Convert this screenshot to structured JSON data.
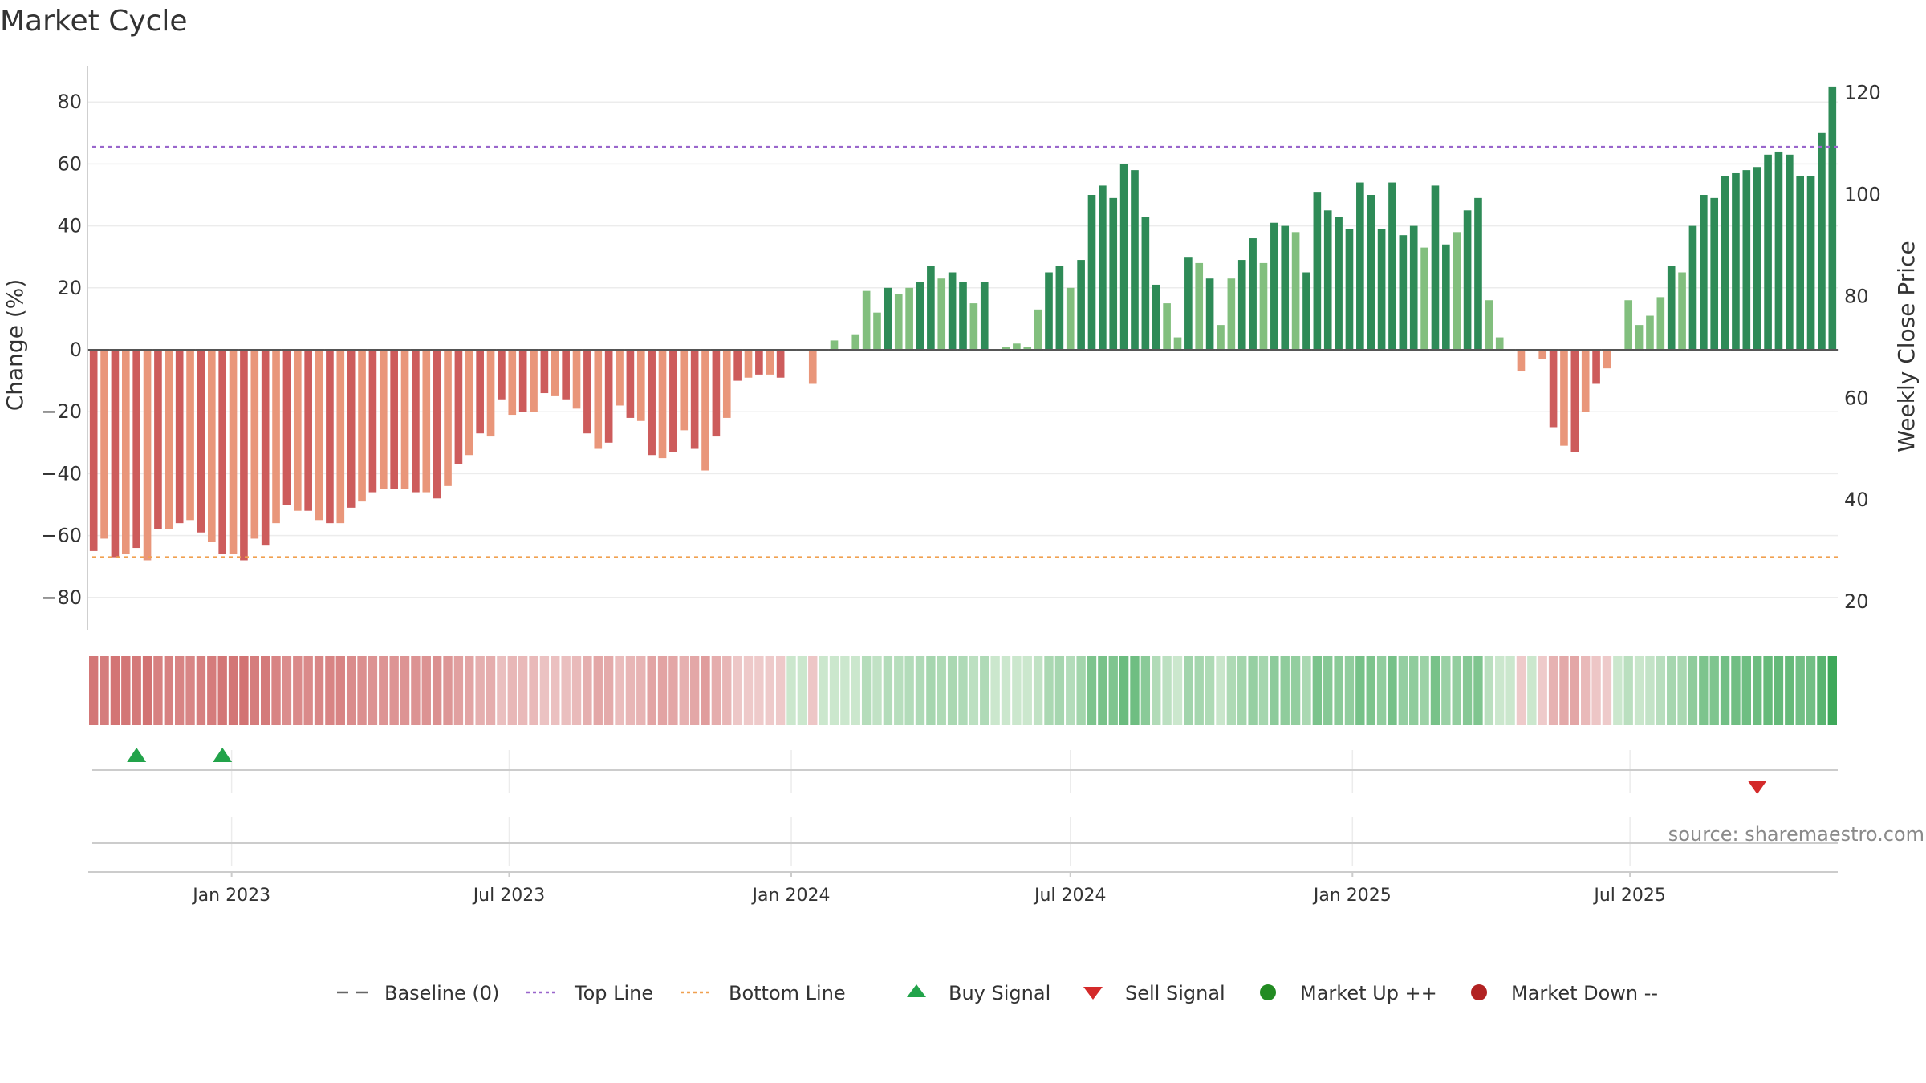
{
  "chart_data": {
    "type": "bar",
    "title": "Market Cycle",
    "ylabel": "Change (%)",
    "y2label": "Weekly Close Price",
    "ylim": [
      -92,
      92
    ],
    "yticks": [
      80,
      60,
      40,
      20,
      0,
      -20,
      -40,
      -60,
      -80
    ],
    "y2lim": [
      14.5,
      125.3
    ],
    "y2ticks": [
      120,
      100,
      80,
      60,
      40,
      20
    ],
    "top_line": 65.5,
    "bottom_line": -67,
    "x_start": "2022-10-03",
    "x_step_days": 7,
    "xticks": [
      {
        "date": "2023-01-01",
        "label": "Jan 2023"
      },
      {
        "date": "2023-07-01",
        "label": "Jul 2023"
      },
      {
        "date": "2024-01-01",
        "label": "Jan 2024"
      },
      {
        "date": "2024-07-01",
        "label": "Jul 2024"
      },
      {
        "date": "2025-01-01",
        "label": "Jan 2025"
      },
      {
        "date": "2025-07-01",
        "label": "Jul 2025"
      }
    ],
    "values": [
      -65,
      -61,
      -67,
      -66,
      -64,
      -68,
      -58,
      -58,
      -56,
      -55,
      -59,
      -62,
      -66,
      -66,
      -68,
      -61,
      -63,
      -56,
      -50,
      -52,
      -52,
      -55,
      -56,
      -56,
      -51,
      -49,
      -46,
      -45,
      -45,
      -45,
      -46,
      -46,
      -48,
      -44,
      -37,
      -34,
      -27,
      -28,
      -16,
      -21,
      -20,
      -20,
      -14,
      -15,
      -16,
      -19,
      -27,
      -32,
      -30,
      -18,
      -22,
      -23,
      -34,
      -35,
      -33,
      -26,
      -32,
      -39,
      -28,
      -22,
      -10,
      -9,
      -8,
      -8,
      -9,
      0,
      0,
      -11,
      0,
      3,
      0,
      5,
      19,
      12,
      20,
      18,
      20,
      22,
      27,
      23,
      25,
      22,
      15,
      22,
      0,
      1,
      2,
      1,
      13,
      25,
      27,
      20,
      29,
      50,
      53,
      49,
      60,
      58,
      43,
      21,
      15,
      4,
      30,
      28,
      23,
      8,
      23,
      29,
      36,
      28,
      41,
      40,
      38,
      25,
      51,
      45,
      43,
      39,
      54,
      50,
      39,
      54,
      37,
      40,
      33,
      53,
      34,
      38,
      45,
      49,
      16,
      4,
      0,
      -7,
      0,
      -3,
      -25,
      -31,
      -33,
      -20,
      -11,
      -6,
      0,
      16,
      8,
      11,
      17,
      27,
      25,
      40,
      50,
      49,
      56,
      57,
      58,
      59,
      63,
      64,
      63,
      56,
      56,
      70,
      85
    ],
    "price_line_value": 1,
    "signals": {
      "buy": [
        "2022-10-31",
        "2022-12-26"
      ],
      "sell": [
        "2025-09-22"
      ]
    },
    "legend": [
      {
        "key": "baseline",
        "label": "Baseline (0)"
      },
      {
        "key": "top",
        "label": "Top Line"
      },
      {
        "key": "bottom",
        "label": "Bottom Line"
      },
      {
        "key": "buy",
        "label": "Buy Signal"
      },
      {
        "key": "sell",
        "label": "Sell Signal"
      },
      {
        "key": "up",
        "label": "Market Up ++"
      },
      {
        "key": "down",
        "label": "Market Down --"
      }
    ],
    "legend_placement": "bottom",
    "grid": true
  },
  "source": "source: sharemaestro.com",
  "colors": {
    "bar_pos_strong": "#2e8b57",
    "bar_pos_weak": "#82bf7e",
    "bar_neg_strong": "#cd5c5c",
    "bar_neg_weak": "#e9967a",
    "top_line": "#9966cc",
    "bottom_line": "#f0a050",
    "buy": "#22a34a",
    "sell": "#d42a2a",
    "up": "#228b22",
    "down": "#b22222",
    "baseline": "#555555"
  }
}
